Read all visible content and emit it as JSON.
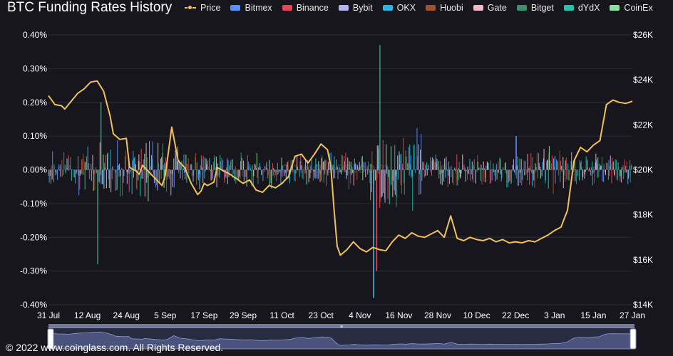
{
  "title": "BTC Funding Rates History",
  "legend": [
    {
      "label": "Price",
      "color": "#f0c05a",
      "kind": "line"
    },
    {
      "label": "Bitmex",
      "color": "#5b8ff9",
      "kind": "bar"
    },
    {
      "label": "Binance",
      "color": "#e8455a",
      "kind": "bar"
    },
    {
      "label": "Bybit",
      "color": "#b3b3f5",
      "kind": "bar"
    },
    {
      "label": "OKX",
      "color": "#29b6e6",
      "kind": "bar"
    },
    {
      "label": "Huobi",
      "color": "#a0522d",
      "kind": "bar"
    },
    {
      "label": "Gate",
      "color": "#f4b6c8",
      "kind": "bar"
    },
    {
      "label": "Bitget",
      "color": "#3f8f6f",
      "kind": "bar"
    },
    {
      "label": "dYdX",
      "color": "#1fc6a8",
      "kind": "bar"
    },
    {
      "label": "CoinEx",
      "color": "#8ee0a0",
      "kind": "bar"
    }
  ],
  "footer": "© 2022 www.coinglass.com. All Rights Reserved.",
  "watermark": "coinglass.com",
  "chart_data": {
    "type": "bar+line",
    "title": "BTC Funding Rates History",
    "x_tick_labels": [
      "31 Jul",
      "12 Aug",
      "24 Aug",
      "5 Sep",
      "17 Sep",
      "29 Sep",
      "11 Oct",
      "23 Oct",
      "4 Nov",
      "16 Nov",
      "28 Nov",
      "10 Dec",
      "22 Dec",
      "3 Jan",
      "15 Jan",
      "27 Jan"
    ],
    "y_left": {
      "label": "",
      "ticks": [
        "0.40%",
        "0.30%",
        "0.20%",
        "0.10%",
        "0.00%",
        "-0.10%",
        "-0.20%",
        "-0.30%",
        "-0.40%"
      ],
      "range": [
        -0.4,
        0.4
      ]
    },
    "y_right": {
      "label": "",
      "ticks": [
        "$26K",
        "$24K",
        "$22K",
        "$20K",
        "$18K",
        "$16K",
        "$14K"
      ],
      "range": [
        14000,
        26000
      ]
    },
    "grid": "horizontal",
    "price_series": {
      "name": "Price",
      "color": "#f0c05a",
      "x_days": [
        0,
        2,
        4,
        5,
        7,
        9,
        11,
        13,
        15,
        17,
        19,
        20,
        22,
        24,
        25,
        27,
        28,
        29,
        31,
        33,
        35,
        36,
        38,
        40,
        42,
        44,
        46,
        47,
        48,
        49,
        51,
        52,
        54,
        56,
        58,
        60,
        62,
        64,
        66,
        68,
        70,
        72,
        74,
        76,
        78,
        80,
        82,
        84,
        86,
        87,
        88,
        89,
        90,
        92,
        94,
        96,
        98,
        100,
        102,
        104,
        106,
        108,
        110,
        112,
        114,
        116,
        118,
        120,
        122,
        124,
        126,
        128,
        130,
        132,
        134,
        136,
        138,
        140,
        142,
        144,
        146,
        148,
        150,
        152,
        154,
        156,
        158,
        160,
        162,
        164,
        166,
        168,
        170,
        172,
        174,
        176,
        178,
        180
      ],
      "values": [
        23300,
        22900,
        22850,
        22700,
        23050,
        23400,
        23600,
        23900,
        23950,
        23500,
        22400,
        21600,
        21350,
        21400,
        20100,
        19950,
        19800,
        20200,
        19900,
        19600,
        19300,
        19750,
        21900,
        20400,
        20100,
        19400,
        18900,
        19050,
        19400,
        19300,
        19450,
        20100,
        19950,
        19800,
        19600,
        19400,
        19550,
        19100,
        19000,
        19300,
        19200,
        19400,
        19700,
        20600,
        20700,
        20300,
        20700,
        21150,
        20900,
        20200,
        18300,
        16600,
        16200,
        16450,
        16800,
        16500,
        16350,
        16550,
        16450,
        16400,
        16800,
        17100,
        16950,
        17200,
        17050,
        17000,
        17150,
        17300,
        17000,
        17950,
        16950,
        16850,
        17000,
        16900,
        16850,
        16950,
        16800,
        16900,
        16750,
        16800,
        16750,
        16850,
        16800,
        16950,
        17100,
        17300,
        17450,
        18200,
        20400,
        21000,
        20800,
        21100,
        21300,
        22900,
        23100,
        23000,
        22950,
        23050
      ]
    },
    "funding_note": "Multi-exchange funding rate bars (Bitmex, Binance, Bybit, OKX, Huobi, Gate, Bitget, dYdX, CoinEx) oscillating around 0.00%, mostly within ±0.05%; notable spikes: about -0.28% near 12 Aug, +0.37% and -0.38% around 10-12 Nov.",
    "funding_spikes": [
      {
        "x_day": 15,
        "value": -0.28,
        "series": "Bitget"
      },
      {
        "x_day": 16,
        "value": 0.2,
        "series": "Bitget"
      },
      {
        "x_day": 100,
        "value": -0.38,
        "series": "OKX"
      },
      {
        "x_day": 101,
        "value": -0.3,
        "series": "Binance"
      },
      {
        "x_day": 102,
        "value": 0.37,
        "series": "Bitget"
      },
      {
        "x_day": 144,
        "value": 0.1,
        "series": "Bitmex"
      }
    ]
  }
}
